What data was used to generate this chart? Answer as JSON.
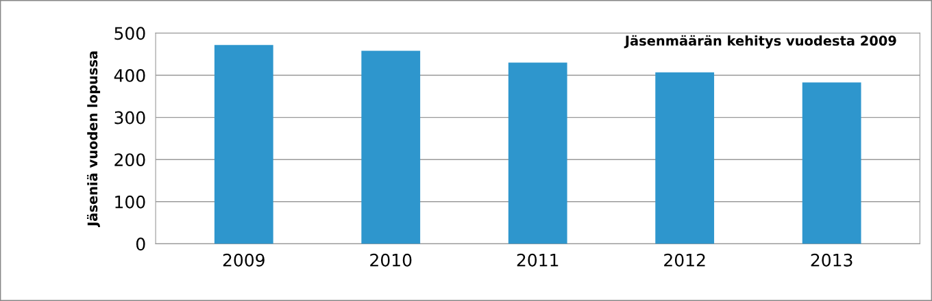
{
  "chart_data": {
    "type": "bar",
    "title": "Jäsenmäärän kehitys vuodesta 2009",
    "ylabel": "Jäseniä vuoden lopussa",
    "categories": [
      "2009",
      "2010",
      "2011",
      "2012",
      "2013"
    ],
    "values": [
      472,
      458,
      430,
      407,
      383
    ],
    "color": "#2e96cd",
    "ylim": [
      0,
      500
    ],
    "yticks": [
      0,
      100,
      200,
      300,
      400,
      500
    ],
    "grid": "y"
  }
}
